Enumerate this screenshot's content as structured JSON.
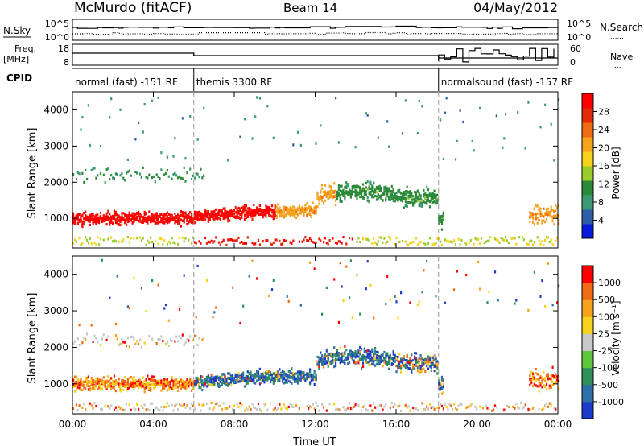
{
  "header": {
    "station": "McMurdo (fitACF)",
    "beam": "Beam 14",
    "date": "04/May/2012"
  },
  "top_panels": {
    "nsky_label": "N.Sky",
    "nsearch_label": "N.Search",
    "nsearch_marker": "........",
    "noise_ticks": [
      "10^5",
      "10^0"
    ],
    "freq_label_1": "Freq.",
    "freq_label_2": "[MHz]",
    "freq_ticks": [
      "18",
      "8"
    ],
    "nave_label": "Nave",
    "nave_marker": "....",
    "nave_ticks": [
      "60",
      "0"
    ],
    "cpid_label": "CPID",
    "cpid_segments": [
      {
        "label": "normal (fast) -151 RF",
        "start": 0,
        "end": 6
      },
      {
        "label": "themis 3300 RF",
        "start": 6,
        "end": 18.1
      },
      {
        "label": "normalsound (fast) -157 RF",
        "start": 18.1,
        "end": 24
      }
    ]
  },
  "chart_data": [
    {
      "type": "heatmap",
      "title": "",
      "ylabel": "Slant Range [km]",
      "xlabel": "",
      "x_range_hours": [
        0,
        24
      ],
      "ylim": [
        180,
        4500
      ],
      "y_ticks": [
        "1000",
        "2000",
        "3000",
        "4000"
      ],
      "x_ticks": [
        "00:00",
        "04:00",
        "08:00",
        "12:00",
        "16:00",
        "20:00",
        "00:00"
      ],
      "colorbar": {
        "label": "Power [dB]",
        "ticks": [
          "4",
          "8",
          "12",
          "16",
          "20",
          "24",
          "28"
        ],
        "colors": [
          "#0a1adc",
          "#2e5fa6",
          "#3b9a74",
          "#2d8a3a",
          "#9bcc2c",
          "#f5d21c",
          "#f5a21c",
          "#f06b12",
          "#e32a0a",
          "#ff0000"
        ]
      }
    },
    {
      "type": "heatmap",
      "title": "",
      "ylabel": "Slant Range [km]",
      "xlabel": "Time UT",
      "x_range_hours": [
        0,
        24
      ],
      "ylim": [
        180,
        4500
      ],
      "y_ticks": [
        "1000",
        "2000",
        "3000",
        "4000"
      ],
      "x_ticks": [
        "00:00",
        "04:00",
        "08:00",
        "12:00",
        "16:00",
        "20:00",
        "00:00"
      ],
      "colorbar": {
        "label": "Velocity [m s⁻¹]",
        "ticks": [
          "1000",
          "500",
          "100",
          "25",
          "-25",
          "-100",
          "-500",
          "-1000"
        ],
        "colors": [
          "#1c3bc8",
          "#2f6fa8",
          "#2f8f5a",
          "#5cc83a",
          "#c8c8c8",
          "#f5d21c",
          "#f5a21c",
          "#f06b12",
          "#ff0000"
        ]
      }
    }
  ]
}
